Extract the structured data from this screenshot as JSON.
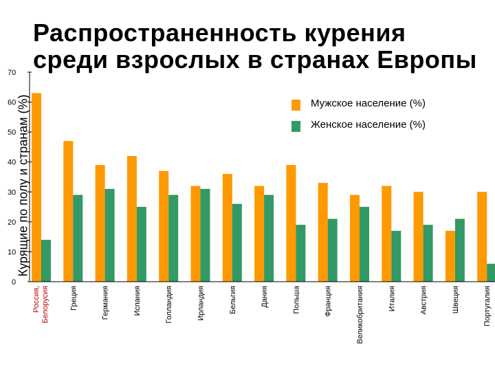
{
  "chart_data": {
    "type": "bar",
    "title": "Распространенность курения среди взрослых в странах Европы",
    "title_lines": [
      "Распространенность курения",
      "среди взрослых в странах Европы"
    ],
    "ylabel": "Курящие по полу и странам (%)",
    "xlabel": "",
    "ylim": [
      0,
      70
    ],
    "yticks": [
      0,
      10,
      20,
      30,
      40,
      50,
      60,
      70
    ],
    "grid": false,
    "legend_position": "top-right",
    "categories": [
      "Россия, Белорусия",
      "Греция",
      "Германия",
      "Испания",
      "Голландия",
      "Ирландия",
      "Бельгия",
      "Дания",
      "Польша",
      "Франция",
      "Великобритания",
      "Италия",
      "Австрия",
      "Швеция",
      "Португалия"
    ],
    "category_highlight": {
      "Россия, Белорусия": "#c00000"
    },
    "series": [
      {
        "name": "Мужское население (%)",
        "color": "#ff9900",
        "values": [
          63,
          47,
          39,
          42,
          37,
          32,
          36,
          32,
          39,
          33,
          29,
          32,
          30,
          17,
          30
        ]
      },
      {
        "name": "Женское население (%)",
        "color": "#339966",
        "values": [
          14,
          29,
          31,
          25,
          29,
          31,
          26,
          29,
          19,
          21,
          25,
          17,
          19,
          21,
          6
        ]
      }
    ]
  }
}
